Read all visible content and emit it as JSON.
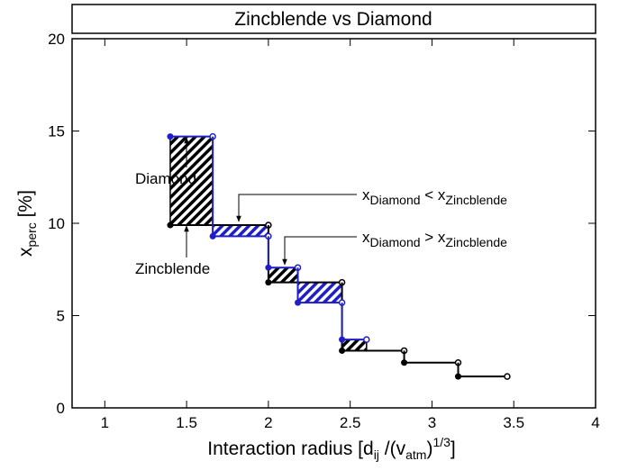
{
  "chart_data": {
    "type": "step",
    "title": "Zincblende vs Diamond",
    "xlabel": [
      "Interaction radius [d",
      "ij",
      " /(v",
      "atm",
      ")",
      "1/3",
      "]"
    ],
    "ylabel": [
      "x",
      "perc",
      " [%]"
    ],
    "xlim": [
      0.8,
      4
    ],
    "xticks": [
      1,
      1.5,
      2,
      2.5,
      3,
      3.5,
      4
    ],
    "ylim": [
      0,
      20
    ],
    "yticks": [
      0,
      5,
      10,
      15,
      20
    ],
    "series": [
      {
        "name": "Diamond",
        "color": "#1f1fc8",
        "x": [
          1.4,
          1.66,
          2.0,
          2.18,
          2.45
        ],
        "x_end": [
          1.66,
          2.0,
          2.18,
          2.45,
          2.6
        ],
        "values": [
          14.7,
          9.3,
          7.6,
          5.7,
          3.7
        ]
      },
      {
        "name": "Zincblende",
        "color": "#000000",
        "x": [
          1.4,
          2.0,
          2.45,
          2.83,
          3.16
        ],
        "x_end": [
          2.0,
          2.45,
          2.83,
          3.16,
          3.46
        ],
        "values": [
          9.9,
          6.8,
          3.1,
          2.45,
          1.7
        ]
      }
    ],
    "annotations": [
      [
        "x",
        "Diamond",
        " < ",
        "x",
        "Zincblende"
      ],
      [
        "x",
        "Diamond",
        " > ",
        "x",
        "Zincblende"
      ]
    ]
  }
}
